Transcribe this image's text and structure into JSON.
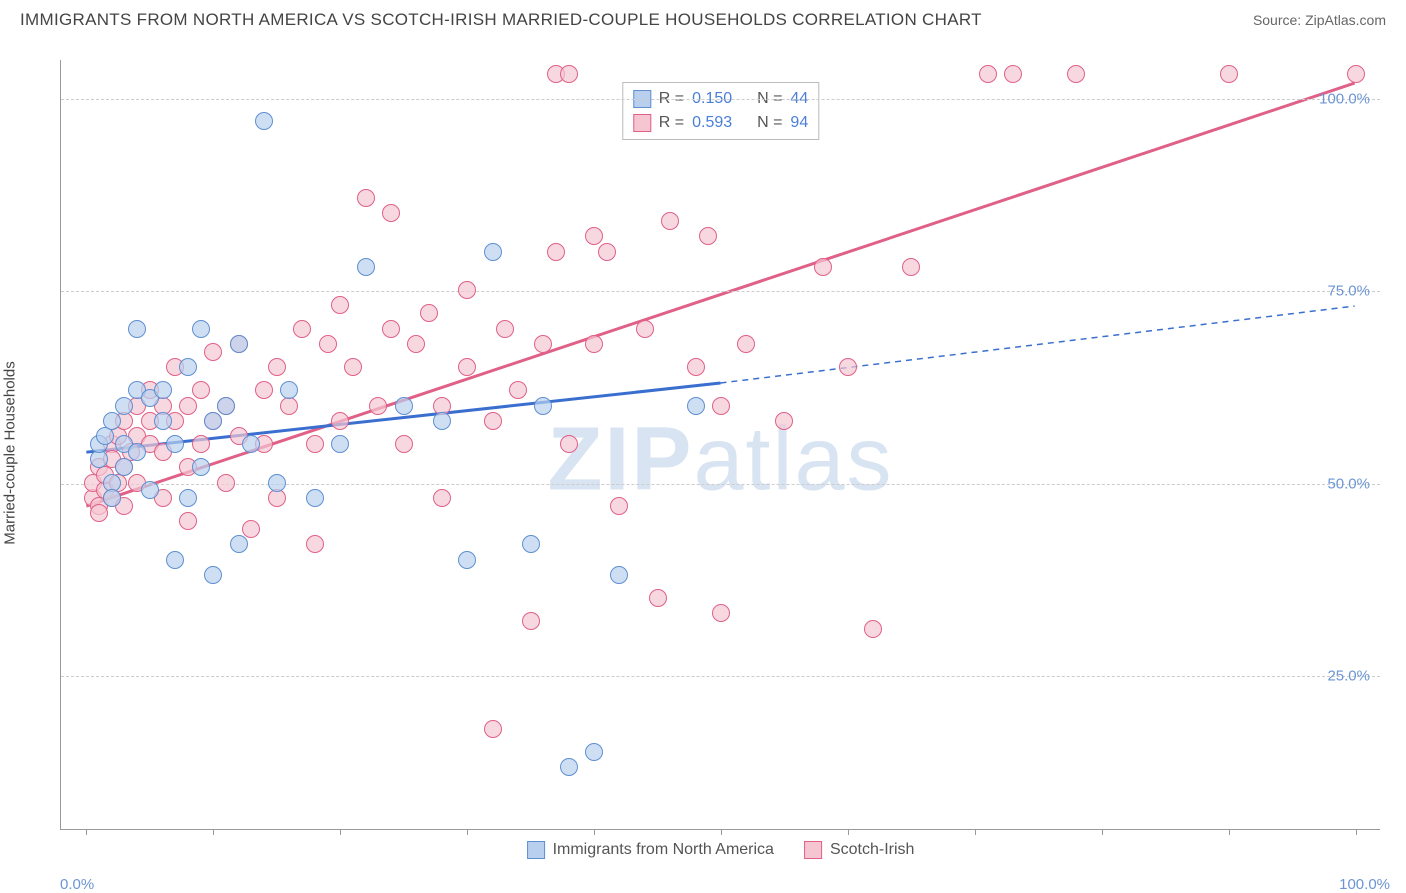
{
  "header": {
    "title": "IMMIGRANTS FROM NORTH AMERICA VS SCOTCH-IRISH MARRIED-COUPLE HOUSEHOLDS CORRELATION CHART",
    "source_prefix": "Source: ",
    "source": "ZipAtlas.com"
  },
  "watermark": {
    "part1": "ZIP",
    "part2": "atlas"
  },
  "axes": {
    "y_title": "Married-couple Households",
    "x_min_label": "0.0%",
    "x_max_label": "100.0%",
    "y_ticks": [
      {
        "v": 25,
        "label": "25.0%"
      },
      {
        "v": 50,
        "label": "50.0%"
      },
      {
        "v": 75,
        "label": "75.0%"
      },
      {
        "v": 100,
        "label": "100.0%"
      }
    ],
    "x_tick_positions": [
      0,
      10,
      20,
      30,
      40,
      50,
      60,
      70,
      80,
      90,
      100
    ],
    "xlim": [
      -2,
      102
    ],
    "ylim": [
      5,
      105
    ]
  },
  "series": {
    "a": {
      "name": "Immigrants from North America",
      "color_fill": "#b8d0ee",
      "color_stroke": "#5f8fd1",
      "r_label": "R = ",
      "r_value": "0.150",
      "n_label": "N = ",
      "n_value": "44",
      "trend": {
        "x1": 0,
        "y1": 54,
        "x2_solid": 50,
        "y2_solid": 63,
        "x2": 100,
        "y2": 73,
        "width": 2
      },
      "points": [
        {
          "x": 1,
          "y": 53
        },
        {
          "x": 1,
          "y": 55
        },
        {
          "x": 1.5,
          "y": 56
        },
        {
          "x": 2,
          "y": 50
        },
        {
          "x": 2,
          "y": 58
        },
        {
          "x": 2,
          "y": 48
        },
        {
          "x": 3,
          "y": 60
        },
        {
          "x": 3,
          "y": 55
        },
        {
          "x": 3,
          "y": 52
        },
        {
          "x": 4,
          "y": 62
        },
        {
          "x": 4,
          "y": 54
        },
        {
          "x": 4,
          "y": 70
        },
        {
          "x": 5,
          "y": 61
        },
        {
          "x": 5,
          "y": 49
        },
        {
          "x": 6,
          "y": 58
        },
        {
          "x": 6,
          "y": 62
        },
        {
          "x": 7,
          "y": 40
        },
        {
          "x": 7,
          "y": 55
        },
        {
          "x": 8,
          "y": 48
        },
        {
          "x": 8,
          "y": 65
        },
        {
          "x": 9,
          "y": 70
        },
        {
          "x": 9,
          "y": 52
        },
        {
          "x": 10,
          "y": 38
        },
        {
          "x": 10,
          "y": 58
        },
        {
          "x": 11,
          "y": 60
        },
        {
          "x": 12,
          "y": 42
        },
        {
          "x": 12,
          "y": 68
        },
        {
          "x": 13,
          "y": 55
        },
        {
          "x": 14,
          "y": 97
        },
        {
          "x": 15,
          "y": 50
        },
        {
          "x": 16,
          "y": 62
        },
        {
          "x": 18,
          "y": 48
        },
        {
          "x": 20,
          "y": 55
        },
        {
          "x": 22,
          "y": 78
        },
        {
          "x": 25,
          "y": 60
        },
        {
          "x": 28,
          "y": 58
        },
        {
          "x": 30,
          "y": 40
        },
        {
          "x": 32,
          "y": 80
        },
        {
          "x": 35,
          "y": 42
        },
        {
          "x": 36,
          "y": 60
        },
        {
          "x": 38,
          "y": 13
        },
        {
          "x": 40,
          "y": 15
        },
        {
          "x": 42,
          "y": 38
        },
        {
          "x": 48,
          "y": 60
        }
      ]
    },
    "b": {
      "name": "Scotch-Irish",
      "color_fill": "#f5c6d2",
      "color_stroke": "#e06088",
      "r_label": "R = ",
      "r_value": "0.593",
      "n_label": "N = ",
      "n_value": "94",
      "trend": {
        "x1": 0,
        "y1": 47,
        "x2": 100,
        "y2": 102,
        "width": 3
      },
      "points": [
        {
          "x": 0.5,
          "y": 48
        },
        {
          "x": 0.5,
          "y": 50
        },
        {
          "x": 1,
          "y": 47
        },
        {
          "x": 1,
          "y": 46
        },
        {
          "x": 1,
          "y": 52
        },
        {
          "x": 1.5,
          "y": 49
        },
        {
          "x": 1.5,
          "y": 51
        },
        {
          "x": 2,
          "y": 55
        },
        {
          "x": 2,
          "y": 48
        },
        {
          "x": 2,
          "y": 53
        },
        {
          "x": 2.5,
          "y": 50
        },
        {
          "x": 2.5,
          "y": 56
        },
        {
          "x": 3,
          "y": 52
        },
        {
          "x": 3,
          "y": 58
        },
        {
          "x": 3,
          "y": 47
        },
        {
          "x": 3.5,
          "y": 54
        },
        {
          "x": 4,
          "y": 56
        },
        {
          "x": 4,
          "y": 60
        },
        {
          "x": 4,
          "y": 50
        },
        {
          "x": 5,
          "y": 58
        },
        {
          "x": 5,
          "y": 55
        },
        {
          "x": 5,
          "y": 62
        },
        {
          "x": 6,
          "y": 54
        },
        {
          "x": 6,
          "y": 60
        },
        {
          "x": 6,
          "y": 48
        },
        {
          "x": 7,
          "y": 58
        },
        {
          "x": 7,
          "y": 65
        },
        {
          "x": 8,
          "y": 52
        },
        {
          "x": 8,
          "y": 60
        },
        {
          "x": 8,
          "y": 45
        },
        {
          "x": 9,
          "y": 62
        },
        {
          "x": 9,
          "y": 55
        },
        {
          "x": 10,
          "y": 58
        },
        {
          "x": 10,
          "y": 67
        },
        {
          "x": 11,
          "y": 50
        },
        {
          "x": 11,
          "y": 60
        },
        {
          "x": 12,
          "y": 56
        },
        {
          "x": 12,
          "y": 68
        },
        {
          "x": 13,
          "y": 44
        },
        {
          "x": 14,
          "y": 62
        },
        {
          "x": 14,
          "y": 55
        },
        {
          "x": 15,
          "y": 65
        },
        {
          "x": 15,
          "y": 48
        },
        {
          "x": 16,
          "y": 60
        },
        {
          "x": 17,
          "y": 70
        },
        {
          "x": 18,
          "y": 55
        },
        {
          "x": 18,
          "y": 42
        },
        {
          "x": 19,
          "y": 68
        },
        {
          "x": 20,
          "y": 58
        },
        {
          "x": 20,
          "y": 73
        },
        {
          "x": 21,
          "y": 65
        },
        {
          "x": 22,
          "y": 87
        },
        {
          "x": 23,
          "y": 60
        },
        {
          "x": 24,
          "y": 70
        },
        {
          "x": 24,
          "y": 85
        },
        {
          "x": 25,
          "y": 55
        },
        {
          "x": 26,
          "y": 68
        },
        {
          "x": 27,
          "y": 72
        },
        {
          "x": 28,
          "y": 60
        },
        {
          "x": 28,
          "y": 48
        },
        {
          "x": 30,
          "y": 65
        },
        {
          "x": 30,
          "y": 75
        },
        {
          "x": 32,
          "y": 58
        },
        {
          "x": 32,
          "y": 18
        },
        {
          "x": 33,
          "y": 70
        },
        {
          "x": 34,
          "y": 62
        },
        {
          "x": 35,
          "y": 32
        },
        {
          "x": 36,
          "y": 68
        },
        {
          "x": 37,
          "y": 80
        },
        {
          "x": 37,
          "y": 103
        },
        {
          "x": 38,
          "y": 103
        },
        {
          "x": 38,
          "y": 55
        },
        {
          "x": 40,
          "y": 82
        },
        {
          "x": 40,
          "y": 68
        },
        {
          "x": 41,
          "y": 80
        },
        {
          "x": 42,
          "y": 47
        },
        {
          "x": 44,
          "y": 70
        },
        {
          "x": 45,
          "y": 35
        },
        {
          "x": 46,
          "y": 84
        },
        {
          "x": 48,
          "y": 65
        },
        {
          "x": 49,
          "y": 82
        },
        {
          "x": 50,
          "y": 33
        },
        {
          "x": 50,
          "y": 60
        },
        {
          "x": 52,
          "y": 68
        },
        {
          "x": 55,
          "y": 58
        },
        {
          "x": 58,
          "y": 78
        },
        {
          "x": 60,
          "y": 65
        },
        {
          "x": 62,
          "y": 31
        },
        {
          "x": 65,
          "y": 78
        },
        {
          "x": 71,
          "y": 103
        },
        {
          "x": 73,
          "y": 103
        },
        {
          "x": 78,
          "y": 103
        },
        {
          "x": 90,
          "y": 103
        },
        {
          "x": 100,
          "y": 103
        }
      ]
    }
  },
  "legend_bottom": {
    "a": "Immigrants from North America",
    "b": "Scotch-Irish"
  }
}
